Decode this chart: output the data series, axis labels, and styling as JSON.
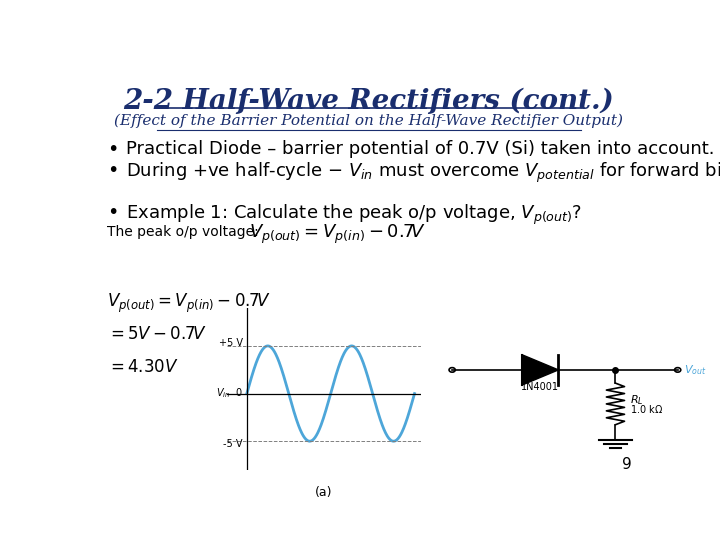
{
  "title": "2-2 Half-Wave Rectifiers (cont.)",
  "subtitle": "(Effect of the Barrier Potential on the Half-Wave Rectifier Output)",
  "title_color": "#1a2e6e",
  "subtitle_color": "#1a2e6e",
  "bullet1": "Practical Diode – barrier potential of 0.7V (Si) taken into account.",
  "bullet3_text": "Example 1: Calculate the peak o/p voltage, $V_{p(out)}$?",
  "peak_op_label": "The peak o/p voltage:",
  "page_number": "9",
  "bg_color": "#ffffff",
  "text_color": "#000000",
  "body_fontsize": 13,
  "title_fontsize": 20,
  "subtitle_fontsize": 11,
  "wave_color": "#4da6d9",
  "circuit_color": "#000000",
  "vout_color": "#4da6d9"
}
